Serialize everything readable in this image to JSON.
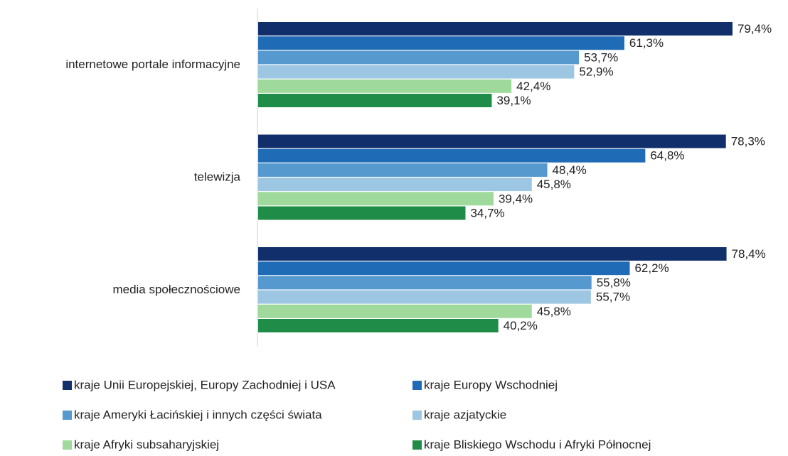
{
  "chart_data": {
    "type": "hbar",
    "categories": [
      "internetowe portale informacyjne",
      "telewizja",
      "media społecznościowe"
    ],
    "series": [
      {
        "name": "kraje Unii Europejskiej, Europy Zachodniej i USA",
        "color": "#11306b",
        "values": [
          79.4,
          78.3,
          78.4
        ],
        "value_labels": [
          "79,4%",
          "78,3%",
          "78,4%"
        ]
      },
      {
        "name": "kraje Europy Wschodniej",
        "color": "#1f6bb6",
        "values": [
          61.3,
          64.8,
          62.2
        ],
        "value_labels": [
          "61,3%",
          "64,8%",
          "62,2%"
        ]
      },
      {
        "name": "kraje Ameryki Łacińskiej i innych części świata",
        "color": "#5599cf",
        "values": [
          53.7,
          48.4,
          55.8
        ],
        "value_labels": [
          "53,7%",
          "48,4%",
          "55,8%"
        ]
      },
      {
        "name": "kraje azjatyckie",
        "color": "#9dc6e3",
        "values": [
          52.9,
          45.8,
          55.7
        ],
        "value_labels": [
          "52,9%",
          "45,8%",
          "55,7%"
        ]
      },
      {
        "name": "kraje Afryki subsaharyjskiej",
        "color": "#9fd99b",
        "values": [
          42.4,
          39.4,
          45.8
        ],
        "value_labels": [
          "42,4%",
          "39,4%",
          "45,8%"
        ]
      },
      {
        "name": "kraje Bliskiego Wschodu i Afryki Północnej",
        "color": "#1f8c47",
        "values": [
          39.1,
          34.7,
          40.2
        ],
        "value_labels": [
          "39,1%",
          "34,7%",
          "40,2%"
        ]
      }
    ]
  }
}
